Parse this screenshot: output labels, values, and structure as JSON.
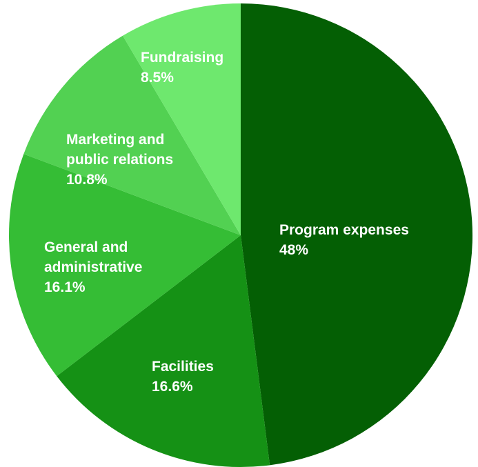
{
  "chart_data": {
    "type": "pie",
    "title": "",
    "legend": "none",
    "slices": [
      {
        "label": "Program expenses",
        "label_lines": [
          "Program expenses"
        ],
        "value": 48,
        "display": "48%",
        "color": "#045f04"
      },
      {
        "label": "Facilities",
        "label_lines": [
          "Facilities"
        ],
        "value": 16.6,
        "display": "16.6%",
        "color": "#159115"
      },
      {
        "label": "General and administrative",
        "label_lines": [
          "General and",
          "administrative"
        ],
        "value": 16.1,
        "display": "16.1%",
        "color": "#35bd35"
      },
      {
        "label": "Marketing and public relations",
        "label_lines": [
          "Marketing and",
          "public relations"
        ],
        "value": 10.8,
        "display": "10.8%",
        "color": "#52d152"
      },
      {
        "label": "Fundraising",
        "label_lines": [
          "Fundraising"
        ],
        "value": 8.5,
        "display": "8.5%",
        "color": "#6ee86e"
      }
    ]
  }
}
